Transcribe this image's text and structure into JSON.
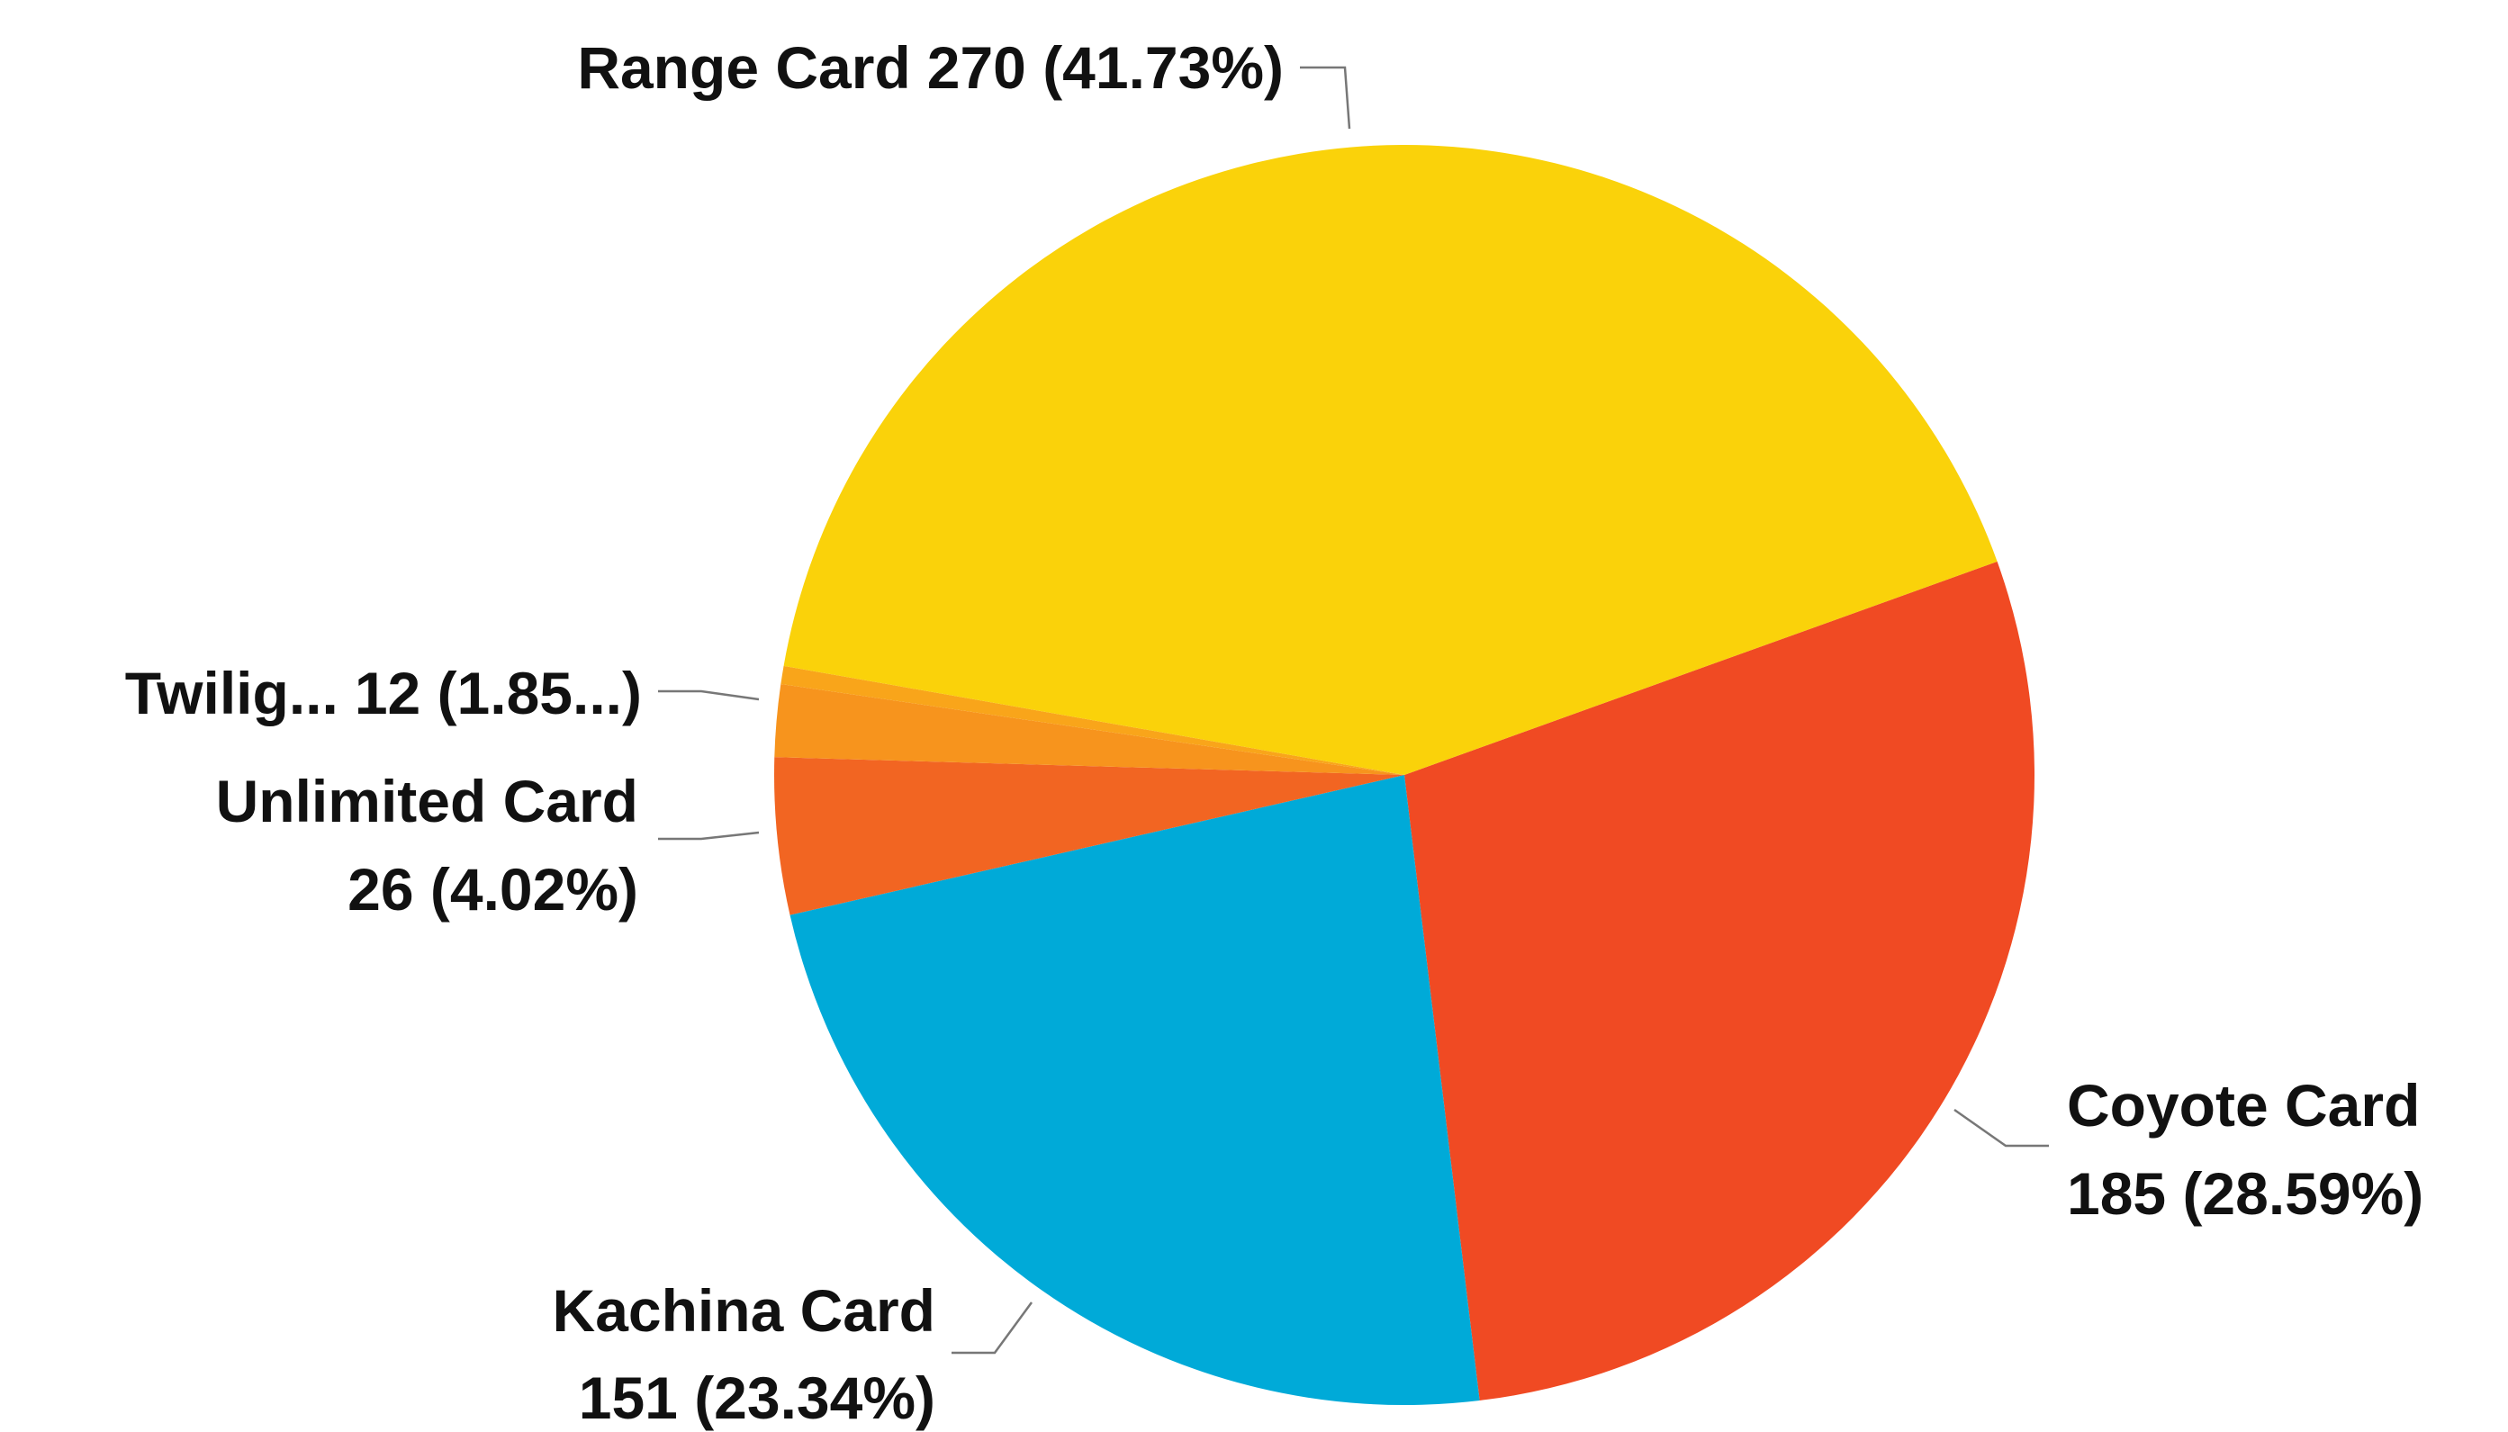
{
  "chart_data": {
    "type": "pie",
    "categories": [
      "Coyote Card",
      "Kachina Card",
      "Unlimited Card",
      "Twilig...",
      null,
      "Range Card"
    ],
    "values": [
      185,
      151,
      26,
      12,
      3,
      270
    ],
    "value_labels": [
      "185 (28.59%)",
      "151 (23.34%)",
      "26 (4.02%)",
      "12 (1.85...)",
      null,
      "270 (41.73%)"
    ],
    "colors": [
      "#f04a23",
      "#00aad8",
      "#f26522",
      "#f7941d",
      "#f9a51a",
      "#fad20a"
    ]
  }
}
